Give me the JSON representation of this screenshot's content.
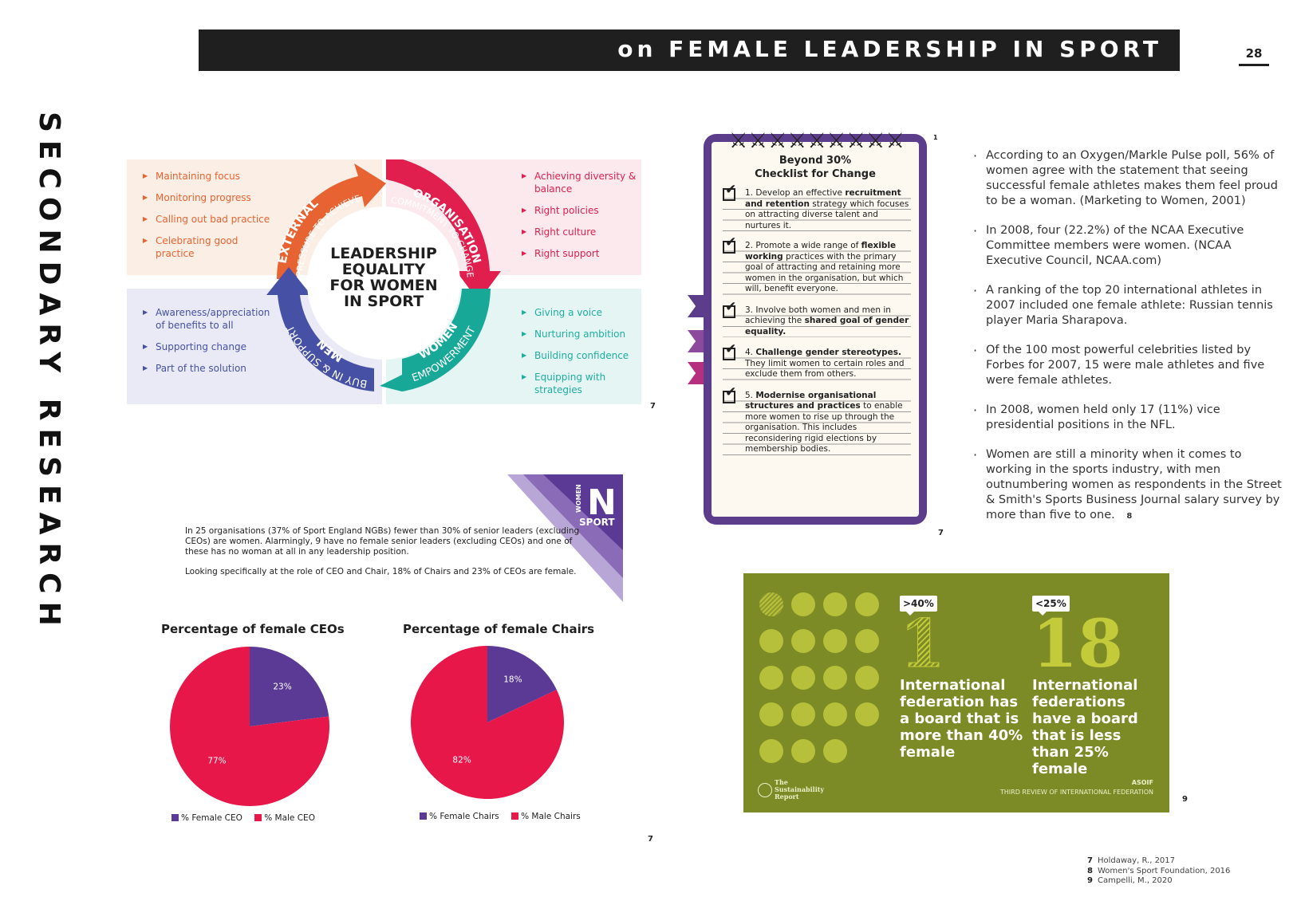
{
  "header": {
    "title": "on FEMALE LEADERSHIP IN SPORT",
    "page_number": "28"
  },
  "section_title": "SECONDARY RESEARCH",
  "leadership_diagram": {
    "center_title": [
      "LEADERSHIP",
      "EQUALITY",
      "FOR WOMEN",
      "IN SPORT"
    ],
    "external": {
      "heading": "EXTERNAL",
      "subheading": "PRESSURE TO ACHIEVE",
      "color": "#e86332",
      "items": [
        "Maintaining focus",
        "Monitoring progress",
        "Calling out bad practice",
        "Celebrating good practice"
      ]
    },
    "organisation": {
      "heading": "ORGANISATION",
      "subheading": "COMMITMENT TO CHANGE",
      "color": "#e01f4e",
      "items": [
        "Achieving diversity & balance",
        "Right policies",
        "Right culture",
        "Right support"
      ]
    },
    "men": {
      "heading": "MEN",
      "subheading": "BUY IN & SUPPORT",
      "color": "#4650a4",
      "items": [
        "Awareness/appreciation of benefits to all",
        "Supporting change",
        "Part of the solution"
      ]
    },
    "women": {
      "heading": "WOMEN",
      "subheading": "EMPOWERMENT",
      "color": "#1eaea0",
      "items": [
        "Giving a voice",
        "Nurturing ambition",
        "Building confidence",
        "Equipping with strategies"
      ]
    },
    "ref": "7"
  },
  "checklist": {
    "title": "Beyond 30%",
    "subtitle": "Checklist for Change",
    "items": [
      {
        "pre": "1. Develop an effective ",
        "bold": "recruitment and retention",
        "post": " strategy which focuses on attracting diverse talent and nurtures it."
      },
      {
        "pre": "2. Promote a wide range of ",
        "bold": "flexible working",
        "post": " practices with the primary goal of attracting and retaining more women in the organisation, but which will, benefit everyone."
      },
      {
        "pre": "3. Involve both women and men in achieving the ",
        "bold": "shared goal of gender equality.",
        "post": ""
      },
      {
        "pre": "4. ",
        "bold": "Challenge gender stereotypes.",
        "post": " They limit women to certain roles and exclude them from others."
      },
      {
        "pre": "5. ",
        "bold": "Modernise organisational structures and practices",
        "post": " to enable more women to rise up through the organisation. This includes reconsidering rigid elections by membership bodies."
      }
    ],
    "ref": "7",
    "corner_mark": "1"
  },
  "bullets": [
    "According to an Oxygen/Markle Pulse poll, 56% of women agree with the statement that seeing successful female athletes makes them feel proud to be a woman. (Marketing to Women, 2001)",
    "In 2008, four (22.2%) of the NCAA Executive Committee members were women. (NCAA Executive Council, NCAA.com)",
    "A ranking of the top 20 international athletes in 2007 included one female athlete: Russian tennis player Maria Sharapova.",
    "Of the 100 most powerful celebrities listed by Forbes for 2007, 15 were male athletes and five were female athletes.",
    "In 2008, women held only 17 (11%) vice presidential positions in the NFL.",
    "Women are still a minority when it comes to working in the sports industry, with men outnumbering women as respondents in the Street & Smith's Sports Business Journal salary survey by more than five to one."
  ],
  "bullets_ref": "8",
  "women_in_sport": {
    "paragraph1": "In 25 organisations (37% of Sport England NGBs) fewer than 30% of senior leaders (excluding CEOs) are women. Alarmingly, 9 have no female senior leaders (excluding CEOs) and one of these has no woman at all in any leadership position.",
    "paragraph2": "Looking specifically at the role of CEO and Chair, 18% of Chairs and 23% of CEOs are female.",
    "logo_small": "WOMEN",
    "logo_letter": "N",
    "logo_word": "SPORT"
  },
  "chart_data": [
    {
      "type": "pie",
      "title": "Percentage of female CEOs",
      "categories": [
        "% Female CEO",
        "% Male CEO"
      ],
      "values": [
        23,
        77
      ],
      "labels": [
        "23%",
        "77%"
      ],
      "colors": [
        "#5a3a95",
        "#e8174a"
      ],
      "legend_position": "bottom"
    },
    {
      "type": "pie",
      "title": "Percentage of female Chairs",
      "categories": [
        "% Female Chairs",
        "% Male Chairs"
      ],
      "values": [
        18,
        82
      ],
      "labels": [
        "18%",
        "82%"
      ],
      "colors": [
        "#5a3a95",
        "#e8174a"
      ],
      "legend_position": "bottom"
    }
  ],
  "charts_ref": "7",
  "federation_panel": {
    "stat1": {
      "badge": ">40%",
      "number": "1",
      "description": "International federation has a board that is more than 40% female"
    },
    "stat2": {
      "badge": "<25%",
      "number": "18",
      "description": "International federations have a board that is less than 25% female"
    },
    "report_logo": [
      "The",
      "Sustainability",
      "Report"
    ],
    "asoif": "ASOIF",
    "review": "THIRD REVIEW OF INTERNATIONAL FEDERATION",
    "ref": "9"
  },
  "references": [
    {
      "num": "7",
      "text": "Holdaway, R., 2017"
    },
    {
      "num": "8",
      "text": "Women's Sport Foundation, 2016"
    },
    {
      "num": "9",
      "text": "Campelli, M., 2020"
    }
  ]
}
